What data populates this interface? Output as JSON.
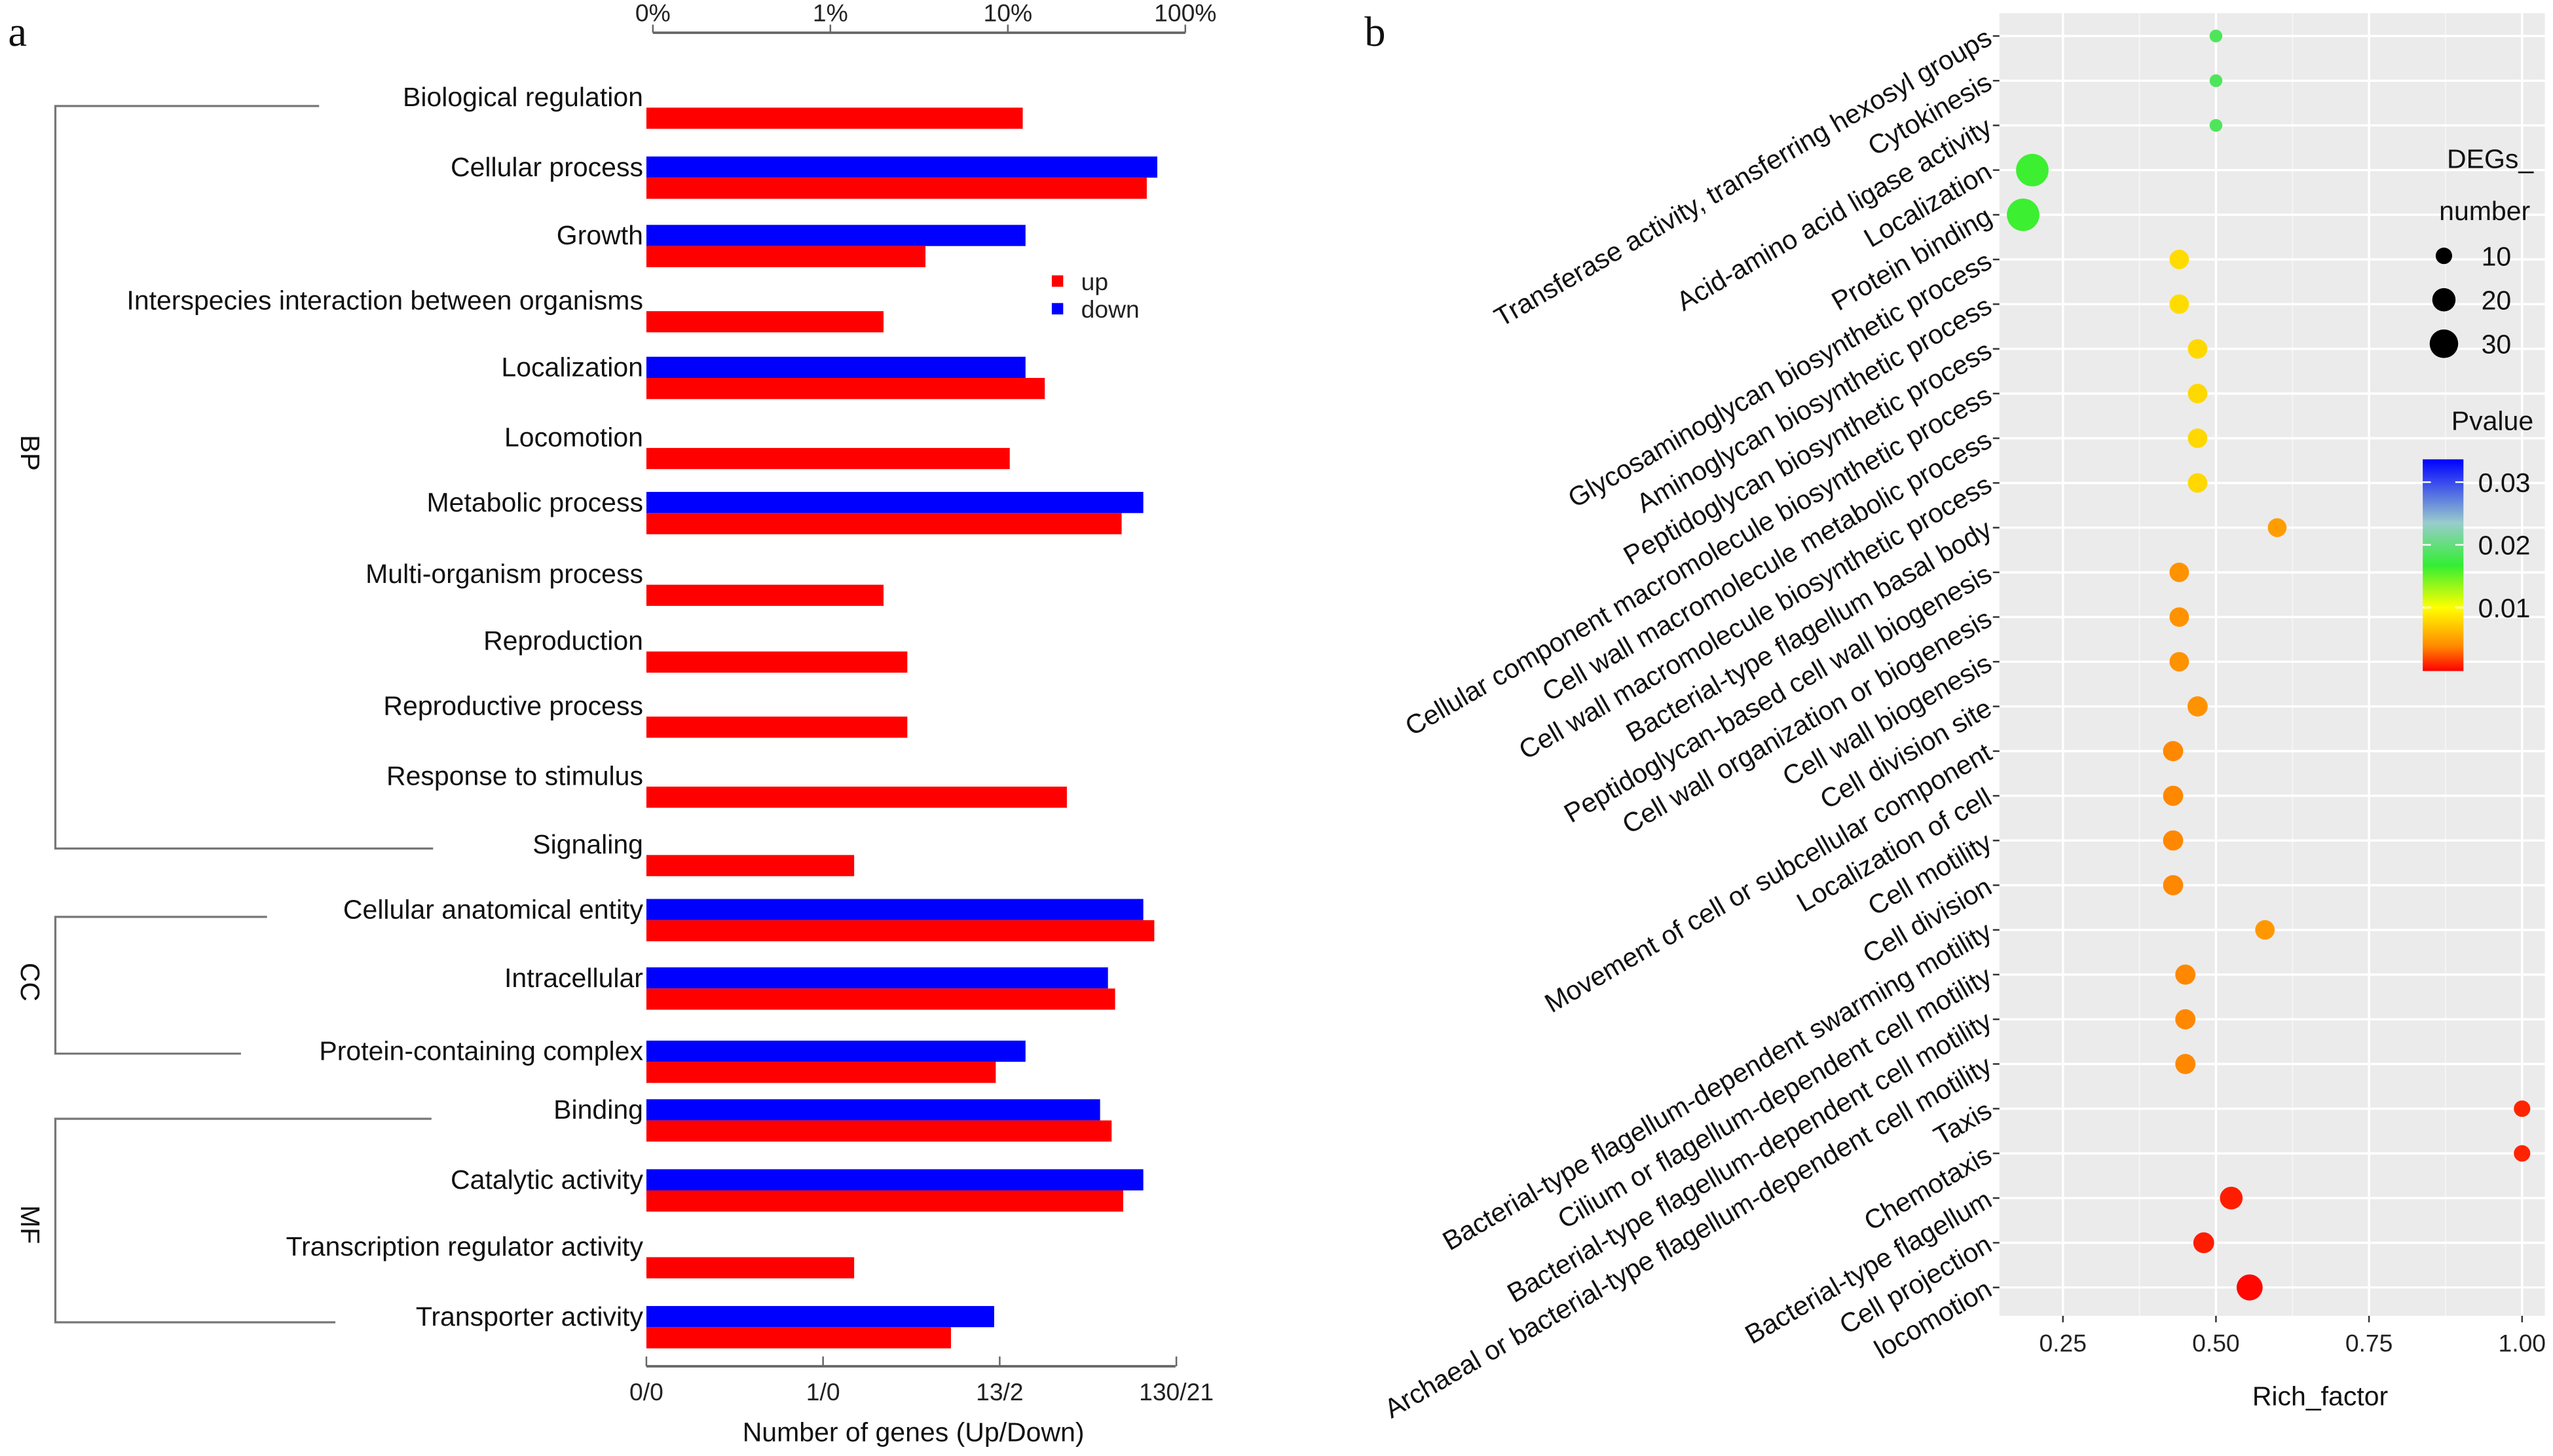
{
  "chart_data": [
    {
      "panel_label": "a",
      "type": "bar",
      "orientation": "horizontal",
      "xlabel": "Number of genes (Up/Down)",
      "top_axis_ticks": [
        "0%",
        "1%",
        "10%",
        "100%"
      ],
      "bottom_axis_ticks": [
        "0/0",
        "1/0",
        "13/2",
        "130/21"
      ],
      "scale": "log (percent of genes)",
      "legend": {
        "placement": "right-middle",
        "entries": [
          {
            "name": "up",
            "color": "#ff0000"
          },
          {
            "name": "down",
            "color": "#0000ff"
          }
        ]
      },
      "groups": [
        {
          "name": "BP",
          "first": 0,
          "last": 11
        },
        {
          "name": "CC",
          "first": 12,
          "last": 14
        },
        {
          "name": "MF",
          "first": 15,
          "last": 18
        }
      ],
      "categories": [
        "Biological regulation",
        "Cellular process",
        "Growth",
        "Interspecies interaction between organisms",
        "Localization",
        "Locomotion",
        "Metabolic process",
        "Multi-organism process",
        "Reproduction",
        "Reproductive process",
        "Response to stimulus",
        "Signaling",
        "Cellular anatomical entity",
        "Intracellular",
        "Protein-containing complex",
        "Binding",
        "Catalytic activity",
        "Transcription regulator activity",
        "Transporter activity"
      ],
      "series": [
        {
          "name": "down",
          "color": "#0000ff",
          "values": [
            null,
            78,
            14,
            null,
            14,
            null,
            65,
            null,
            null,
            null,
            null,
            null,
            65,
            41,
            14,
            37,
            65,
            null,
            9.3
          ]
        },
        {
          "name": "up",
          "color": "#ff0000",
          "values": [
            13.5,
            68,
            3.8,
            2.2,
            18,
            11.4,
            49,
            2.2,
            3.0,
            3.0,
            24,
            1.5,
            75,
            45,
            9.5,
            43,
            50,
            1.5,
            5.3
          ]
        }
      ]
    },
    {
      "panel_label": "b",
      "type": "scatter",
      "xlabel": "Rich_factor",
      "xticks": [
        "0.25",
        "0.50",
        "0.75",
        "1.00"
      ],
      "xlim": [
        0.15,
        1.04
      ],
      "grid": true,
      "size_legend": {
        "title_line1": "DEGs_",
        "title_line2": "number",
        "values": [
          "10",
          "20",
          "30"
        ]
      },
      "color_legend": {
        "title": "Pvalue",
        "ticks": [
          "0.03",
          "0.02",
          "0.01"
        ],
        "range": [
          0.001,
          0.0336
        ],
        "colors": [
          "#ff0000",
          "#ff8c00",
          "#ffff00",
          "#33ee33",
          "#99cccc",
          "#0000ff"
        ]
      },
      "categories": [
        "Transferase activity, transferring hexosyl groups",
        "Cytokinesis",
        "Acid-amino acid ligase activity",
        "Localization",
        "Protein binding",
        "Glycosaminoglycan biosynthetic process",
        "Aminoglycan biosynthetic process",
        "Peptidoglycan biosynthetic process",
        "Cellular component macromolecule biosynthetic process",
        "Cell wall macromolecule metabolic process",
        "Cell wall macromolecule biosynthetic process",
        "Bacterial-type flagellum basal body",
        "Peptidoglycan-based cell wall biogenesis",
        "Cell wall organization or biogenesis",
        "Cell wall biogenesis",
        "Cell division site",
        "Movement of cell or subcellular component",
        "Localization of cell",
        "Cell motility",
        "Cell division",
        "Bacterial-type flagellum-dependent swarming motility",
        "Cilium or flagellum-dependent cell motility",
        "Bacterial-type flagellum-dependent cell motility",
        "Archaeal or bacterial-type flagellum-dependent cell motility",
        "Taxis",
        "Chemotaxis",
        "Bacterial-type flagellum",
        "Cell projection",
        "locomotion"
      ],
      "rich_factor": [
        0.5,
        0.5,
        0.5,
        0.2,
        0.185,
        0.44,
        0.44,
        0.47,
        0.47,
        0.47,
        0.47,
        0.6,
        0.44,
        0.44,
        0.44,
        0.47,
        0.43,
        0.43,
        0.43,
        0.43,
        0.58,
        0.45,
        0.45,
        0.45,
        1.0,
        1.0,
        0.525,
        0.48,
        0.555
      ],
      "degs_number": [
        6,
        6,
        6,
        39,
        39,
        14,
        14,
        14,
        14,
        14,
        14,
        13,
        14,
        14,
        14,
        15,
        15,
        15,
        15,
        15,
        14,
        15,
        15,
        15,
        10,
        10,
        19,
        16,
        25
      ],
      "pvalue": [
        0.019,
        0.019,
        0.019,
        0.017,
        0.017,
        0.009,
        0.009,
        0.0088,
        0.0088,
        0.0088,
        0.0088,
        0.0058,
        0.0052,
        0.0052,
        0.0052,
        0.0052,
        0.0048,
        0.0048,
        0.0048,
        0.0048,
        0.0055,
        0.0048,
        0.0048,
        0.0048,
        0.002,
        0.002,
        0.0018,
        0.0018,
        0.0012
      ]
    }
  ]
}
